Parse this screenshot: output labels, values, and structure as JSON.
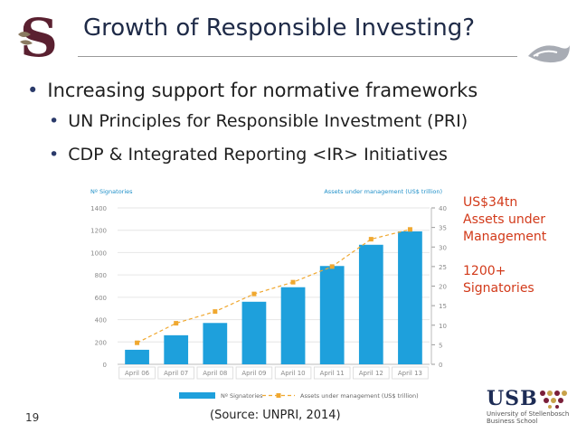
{
  "slide": {
    "title": "Growth of Responsible Investing?",
    "bullets": [
      "Increasing support for normative frameworks",
      "UN Principles for Responsible Investment (PRI)",
      "CDP & Integrated Reporting <IR> Initiatives"
    ],
    "bullet_glyph": "•",
    "side_note": [
      "US$34tn",
      "Assets under",
      "Management",
      "",
      "1200+",
      "Signatories"
    ],
    "source": "(Source: UNPRI, 2014)",
    "page_number": "19",
    "logo_right_text": "USB",
    "logo_right_sub": [
      "University of Stellenbosch",
      "Business School"
    ],
    "colors": {
      "title": "#1e2a47",
      "accent_red": "#d23a1a",
      "bar": "#1ea0dc",
      "line": "#f0a830"
    }
  },
  "chart_data": {
    "type": "bar",
    "categories": [
      "April 06",
      "April 07",
      "April 08",
      "April 09",
      "April 10",
      "April 11",
      "April 12",
      "April 13"
    ],
    "series": [
      {
        "name": "Nº Signatories",
        "type": "bar",
        "axis": "left",
        "values": [
          130,
          260,
          370,
          560,
          690,
          880,
          1070,
          1190
        ]
      },
      {
        "name": "Assets under management (US$ trillion)",
        "type": "line",
        "axis": "right",
        "values": [
          5.5,
          10.5,
          13.5,
          18,
          21,
          25,
          32,
          34.5
        ]
      }
    ],
    "left_axis": {
      "label": "Nº Signatories",
      "ticks": [
        "0",
        "200",
        "400",
        "600",
        "800",
        "1000",
        "1200",
        "1400"
      ],
      "range": [
        0,
        1400
      ]
    },
    "right_axis": {
      "label": "Assets under management (US$ trillion)",
      "ticks": [
        "0",
        "5",
        "10",
        "15",
        "20",
        "25",
        "30",
        "35",
        "40"
      ],
      "range": [
        0,
        40
      ]
    },
    "legend_position": "bottom-center",
    "grid": true
  }
}
